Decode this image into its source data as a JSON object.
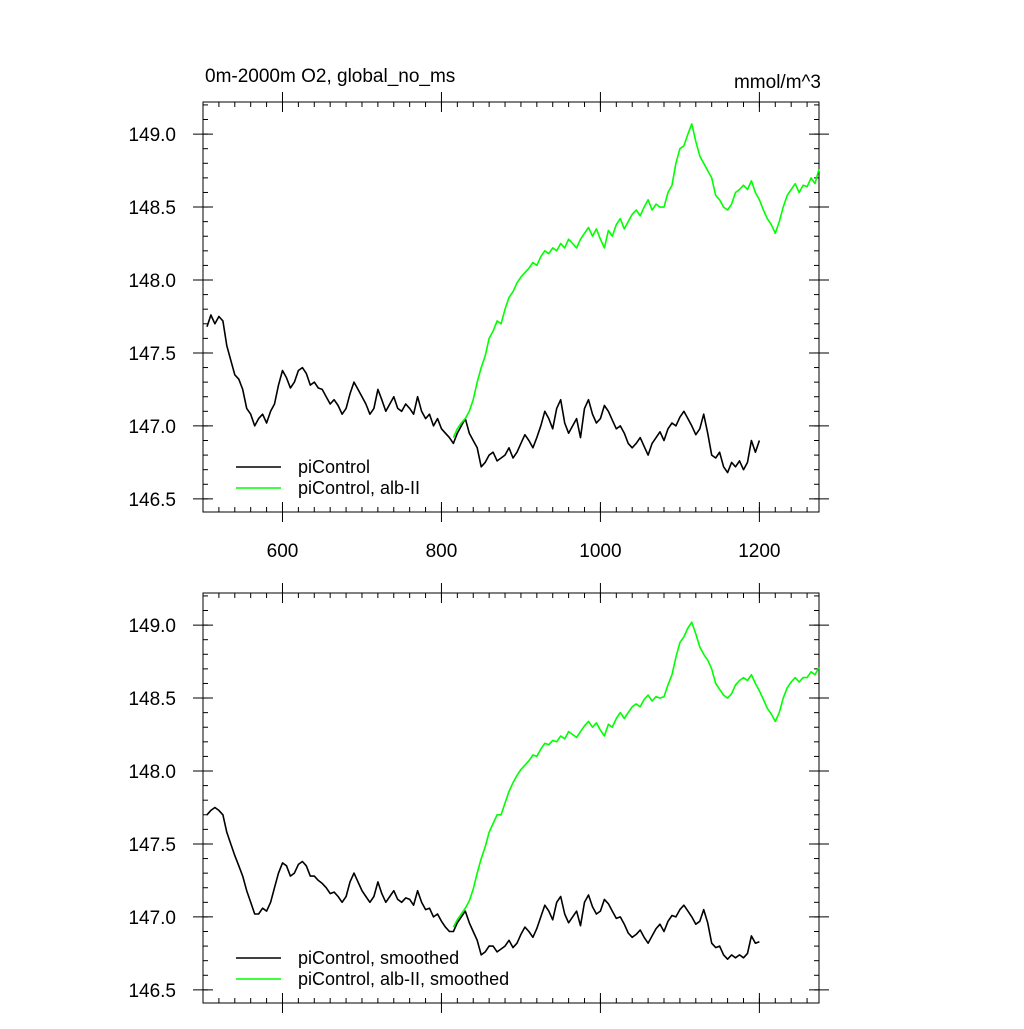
{
  "chart_data": [
    {
      "type": "line",
      "title": "0m-2000m O2, global_no_ms",
      "units_label": "mmol/m^3",
      "xlim": [
        500,
        1275
      ],
      "ylim": [
        146.41,
        149.22
      ],
      "x_ticks": [
        600,
        800,
        1000,
        1200
      ],
      "y_ticks": [
        146.5,
        147.0,
        147.5,
        148.0,
        148.5,
        149.0
      ],
      "x_tick_labels": [
        "600",
        "800",
        "1000",
        "1200"
      ],
      "y_tick_labels": [
        "146.5",
        "147.0",
        "147.5",
        "148.0",
        "148.5",
        "149.0"
      ],
      "grid": false,
      "legend_position": "bottom-left",
      "series": [
        {
          "name": "piControl",
          "color": "#000000",
          "x": [
            505,
            510,
            515,
            520,
            525,
            530,
            535,
            540,
            545,
            550,
            555,
            560,
            565,
            570,
            575,
            580,
            585,
            590,
            595,
            600,
            605,
            610,
            615,
            620,
            625,
            630,
            635,
            640,
            645,
            650,
            655,
            660,
            665,
            670,
            675,
            680,
            685,
            690,
            695,
            700,
            705,
            710,
            715,
            720,
            725,
            730,
            735,
            740,
            745,
            750,
            755,
            760,
            765,
            770,
            775,
            780,
            785,
            790,
            795,
            800,
            805,
            810,
            815,
            820,
            825,
            830,
            835,
            840,
            845,
            850,
            855,
            860,
            865,
            870,
            875,
            880,
            885,
            890,
            895,
            900,
            905,
            910,
            915,
            920,
            925,
            930,
            935,
            940,
            945,
            950,
            955,
            960,
            965,
            970,
            975,
            980,
            985,
            990,
            995,
            1000,
            1005,
            1010,
            1015,
            1020,
            1025,
            1030,
            1035,
            1040,
            1045,
            1050,
            1055,
            1060,
            1065,
            1070,
            1075,
            1080,
            1085,
            1090,
            1095,
            1100,
            1105,
            1110,
            1115,
            1120,
            1125,
            1130,
            1135,
            1140,
            1145,
            1150,
            1155,
            1160,
            1165,
            1170,
            1175,
            1180,
            1185,
            1190,
            1195,
            1200
          ],
          "values": [
            147.68,
            147.76,
            147.7,
            147.75,
            147.72,
            147.55,
            147.45,
            147.35,
            147.32,
            147.25,
            147.12,
            147.08,
            147.0,
            147.05,
            147.08,
            147.02,
            147.1,
            147.15,
            147.28,
            147.38,
            147.33,
            147.26,
            147.3,
            147.38,
            147.4,
            147.36,
            147.28,
            147.3,
            147.26,
            147.25,
            147.2,
            147.15,
            147.18,
            147.14,
            147.08,
            147.12,
            147.22,
            147.3,
            147.25,
            147.2,
            147.15,
            147.08,
            147.12,
            147.25,
            147.18,
            147.1,
            147.15,
            147.2,
            147.12,
            147.1,
            147.15,
            147.12,
            147.08,
            147.2,
            147.1,
            147.05,
            147.08,
            147.0,
            147.05,
            146.98,
            146.95,
            146.92,
            146.88,
            146.95,
            147.0,
            147.05,
            146.95,
            146.9,
            146.85,
            146.72,
            146.75,
            146.8,
            146.82,
            146.76,
            146.78,
            146.8,
            146.85,
            146.78,
            146.82,
            146.88,
            146.94,
            146.9,
            146.85,
            146.92,
            147.0,
            147.1,
            147.05,
            146.98,
            147.12,
            147.18,
            147.02,
            146.95,
            147.0,
            147.05,
            146.92,
            147.12,
            147.18,
            147.08,
            147.02,
            147.05,
            147.14,
            147.1,
            147.04,
            146.98,
            147.0,
            146.95,
            146.88,
            146.85,
            146.88,
            146.92,
            146.86,
            146.8,
            146.88,
            146.92,
            146.96,
            146.9,
            146.98,
            147.02,
            147.0,
            147.06,
            147.1,
            147.05,
            147.0,
            146.94,
            146.98,
            147.08,
            146.95,
            146.8,
            146.78,
            146.82,
            146.72,
            146.68,
            146.75,
            146.72,
            146.76,
            146.7,
            146.75,
            146.9,
            146.82,
            146.9
          ]
        },
        {
          "name": "piControl, alb-II",
          "color": "#00ff00",
          "x": [
            815,
            820,
            825,
            830,
            835,
            840,
            845,
            850,
            855,
            860,
            865,
            870,
            875,
            880,
            885,
            890,
            895,
            900,
            905,
            910,
            915,
            920,
            925,
            930,
            935,
            940,
            945,
            950,
            955,
            960,
            965,
            970,
            975,
            980,
            985,
            990,
            995,
            1000,
            1005,
            1010,
            1015,
            1020,
            1025,
            1030,
            1035,
            1040,
            1045,
            1050,
            1055,
            1060,
            1065,
            1070,
            1075,
            1080,
            1085,
            1090,
            1095,
            1100,
            1105,
            1110,
            1115,
            1120,
            1125,
            1130,
            1135,
            1140,
            1145,
            1150,
            1155,
            1160,
            1165,
            1170,
            1175,
            1180,
            1185,
            1190,
            1195,
            1200,
            1205,
            1210,
            1215,
            1220,
            1225,
            1230,
            1235,
            1240,
            1245,
            1250,
            1255,
            1260,
            1265,
            1270,
            1275
          ],
          "values": [
            146.92,
            146.98,
            147.02,
            147.05,
            147.1,
            147.18,
            147.3,
            147.4,
            147.48,
            147.6,
            147.65,
            147.72,
            147.7,
            147.8,
            147.88,
            147.92,
            147.98,
            148.02,
            148.05,
            148.08,
            148.12,
            148.1,
            148.16,
            148.2,
            148.18,
            148.22,
            148.2,
            148.25,
            148.22,
            148.28,
            148.25,
            148.22,
            148.28,
            148.32,
            148.36,
            148.3,
            148.35,
            148.28,
            148.22,
            148.34,
            148.3,
            148.38,
            148.42,
            148.35,
            148.4,
            148.45,
            148.48,
            148.44,
            148.5,
            148.55,
            148.48,
            148.52,
            148.5,
            148.5,
            148.6,
            148.65,
            148.8,
            148.9,
            148.92,
            149.0,
            149.07,
            148.95,
            148.85,
            148.8,
            148.75,
            148.7,
            148.58,
            148.55,
            148.5,
            148.48,
            148.52,
            148.6,
            148.62,
            148.65,
            148.62,
            148.68,
            148.6,
            148.55,
            148.48,
            148.42,
            148.38,
            148.32,
            148.4,
            148.5,
            148.58,
            148.62,
            148.66,
            148.6,
            148.65,
            148.64,
            148.7,
            148.66,
            148.76
          ]
        }
      ],
      "legend": [
        "piControl",
        "piControl, alb-II"
      ]
    },
    {
      "type": "line",
      "title": "",
      "xlim": [
        500,
        1275
      ],
      "ylim": [
        146.41,
        149.22
      ],
      "x_ticks": [
        600,
        800,
        1000,
        1200
      ],
      "y_ticks": [
        146.5,
        147.0,
        147.5,
        148.0,
        148.5,
        149.0
      ],
      "y_tick_labels": [
        "146.5",
        "147.0",
        "147.5",
        "148.0",
        "148.5",
        "149.0"
      ],
      "grid": false,
      "legend_position": "bottom-left",
      "series": [
        {
          "name": "piControl, smoothed",
          "color": "#000000",
          "x": [
            505,
            510,
            515,
            520,
            525,
            530,
            535,
            540,
            545,
            550,
            555,
            560,
            565,
            570,
            575,
            580,
            585,
            590,
            595,
            600,
            605,
            610,
            615,
            620,
            625,
            630,
            635,
            640,
            645,
            650,
            655,
            660,
            665,
            670,
            675,
            680,
            685,
            690,
            695,
            700,
            705,
            710,
            715,
            720,
            725,
            730,
            735,
            740,
            745,
            750,
            755,
            760,
            765,
            770,
            775,
            780,
            785,
            790,
            795,
            800,
            805,
            810,
            815,
            820,
            825,
            830,
            835,
            840,
            845,
            850,
            855,
            860,
            865,
            870,
            875,
            880,
            885,
            890,
            895,
            900,
            905,
            910,
            915,
            920,
            925,
            930,
            935,
            940,
            945,
            950,
            955,
            960,
            965,
            970,
            975,
            980,
            985,
            990,
            995,
            1000,
            1005,
            1010,
            1015,
            1020,
            1025,
            1030,
            1035,
            1040,
            1045,
            1050,
            1055,
            1060,
            1065,
            1070,
            1075,
            1080,
            1085,
            1090,
            1095,
            1100,
            1105,
            1110,
            1115,
            1120,
            1125,
            1130,
            1135,
            1140,
            1145,
            1150,
            1155,
            1160,
            1165,
            1170,
            1175,
            1180,
            1185,
            1190,
            1195,
            1200
          ],
          "values": [
            147.7,
            147.73,
            147.75,
            147.73,
            147.7,
            147.58,
            147.5,
            147.42,
            147.35,
            147.28,
            147.18,
            147.1,
            147.02,
            147.02,
            147.06,
            147.04,
            147.1,
            147.2,
            147.3,
            147.37,
            147.35,
            147.28,
            147.3,
            147.36,
            147.38,
            147.35,
            147.28,
            147.28,
            147.25,
            147.23,
            147.2,
            147.16,
            147.17,
            147.14,
            147.1,
            147.14,
            147.24,
            147.3,
            147.24,
            147.18,
            147.14,
            147.1,
            147.14,
            147.24,
            147.16,
            147.1,
            147.14,
            147.18,
            147.12,
            147.1,
            147.13,
            147.12,
            147.08,
            147.18,
            147.1,
            147.05,
            147.06,
            147.0,
            147.02,
            146.97,
            146.93,
            146.9,
            146.9,
            146.96,
            147.0,
            147.04,
            146.96,
            146.9,
            146.84,
            146.74,
            146.76,
            146.8,
            146.8,
            146.76,
            146.78,
            146.8,
            146.84,
            146.79,
            146.82,
            146.88,
            146.93,
            146.9,
            146.86,
            146.92,
            147.0,
            147.08,
            147.04,
            146.98,
            147.1,
            147.14,
            147.02,
            146.96,
            147.0,
            147.04,
            146.94,
            147.1,
            147.15,
            147.07,
            147.02,
            147.04,
            147.12,
            147.09,
            147.04,
            146.99,
            147.0,
            146.95,
            146.89,
            146.86,
            146.88,
            146.91,
            146.86,
            146.82,
            146.87,
            146.92,
            146.95,
            146.9,
            146.97,
            147.01,
            147.0,
            147.05,
            147.08,
            147.04,
            147.0,
            146.95,
            146.97,
            147.05,
            146.96,
            146.82,
            146.79,
            146.8,
            146.74,
            146.71,
            146.74,
            146.72,
            146.74,
            146.72,
            146.75,
            146.87,
            146.82,
            146.83
          ]
        },
        {
          "name": "piControl, alb-II, smoothed",
          "color": "#00ff00",
          "x": [
            815,
            820,
            825,
            830,
            835,
            840,
            845,
            850,
            855,
            860,
            865,
            870,
            875,
            880,
            885,
            890,
            895,
            900,
            905,
            910,
            915,
            920,
            925,
            930,
            935,
            940,
            945,
            950,
            955,
            960,
            965,
            970,
            975,
            980,
            985,
            990,
            995,
            1000,
            1005,
            1010,
            1015,
            1020,
            1025,
            1030,
            1035,
            1040,
            1045,
            1050,
            1055,
            1060,
            1065,
            1070,
            1075,
            1080,
            1085,
            1090,
            1095,
            1100,
            1105,
            1110,
            1115,
            1120,
            1125,
            1130,
            1135,
            1140,
            1145,
            1150,
            1155,
            1160,
            1165,
            1170,
            1175,
            1180,
            1185,
            1190,
            1195,
            1200,
            1205,
            1210,
            1215,
            1220,
            1225,
            1230,
            1235,
            1240,
            1245,
            1250,
            1255,
            1260,
            1265,
            1270,
            1275
          ],
          "values": [
            146.93,
            146.98,
            147.02,
            147.06,
            147.11,
            147.19,
            147.3,
            147.4,
            147.48,
            147.58,
            147.64,
            147.7,
            147.7,
            147.78,
            147.86,
            147.92,
            147.97,
            148.01,
            148.04,
            148.07,
            148.11,
            148.1,
            148.15,
            148.19,
            148.18,
            148.21,
            148.2,
            148.24,
            148.22,
            148.27,
            148.25,
            148.23,
            148.27,
            148.31,
            148.34,
            148.3,
            148.33,
            148.28,
            148.24,
            148.32,
            148.3,
            148.36,
            148.4,
            148.36,
            148.4,
            148.44,
            148.46,
            148.44,
            148.49,
            148.52,
            148.48,
            148.51,
            148.5,
            148.51,
            148.59,
            148.66,
            148.78,
            148.88,
            148.92,
            148.98,
            149.02,
            148.94,
            148.85,
            148.8,
            148.76,
            148.7,
            148.6,
            148.56,
            148.52,
            148.5,
            148.53,
            148.59,
            148.62,
            148.64,
            148.62,
            148.66,
            148.6,
            148.55,
            148.49,
            148.43,
            148.39,
            148.34,
            148.4,
            148.5,
            148.57,
            148.61,
            148.64,
            148.61,
            148.64,
            148.64,
            148.68,
            148.66,
            148.71
          ]
        }
      ],
      "legend": [
        "piControl, smoothed",
        "piControl, alb-II, smoothed"
      ]
    }
  ]
}
